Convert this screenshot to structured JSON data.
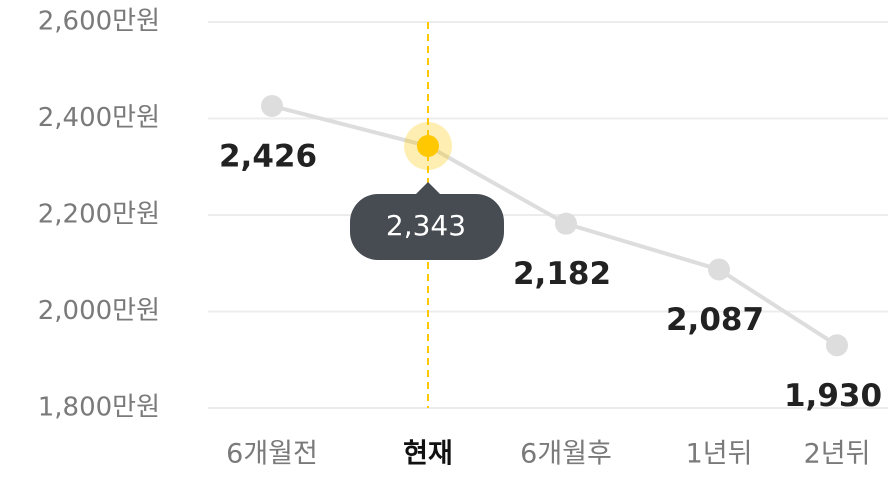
{
  "chart_data": {
    "type": "line",
    "categories": [
      "6개월전",
      "현재",
      "6개월후",
      "1년뒤",
      "2년뒤"
    ],
    "values": [
      2426,
      2343,
      2182,
      2087,
      1930
    ],
    "value_labels": [
      "2,426",
      "2,343",
      "2,182",
      "2,087",
      "1,930"
    ],
    "ylim": [
      1800,
      2600
    ],
    "yticks": [
      {
        "value": 1800,
        "label": "1,800만원"
      },
      {
        "value": 2000,
        "label": "2,000만원"
      },
      {
        "value": 2200,
        "label": "2,200만원"
      },
      {
        "value": 2400,
        "label": "2,400만원"
      },
      {
        "value": 2600,
        "label": "2,600만원"
      }
    ],
    "grid": true,
    "color": "#dddddd",
    "highlight_index": 1,
    "highlight_color": "#ffc800",
    "tooltip_color": "#474c53"
  }
}
